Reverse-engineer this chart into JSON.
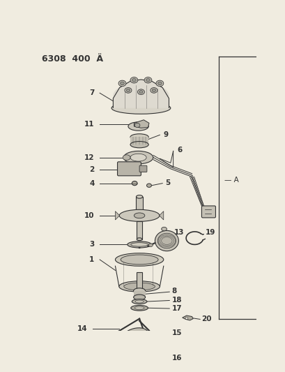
{
  "title": "6308 400 A",
  "bg": "#f0ece0",
  "lc": "#333333",
  "fig_width": 4.1,
  "fig_height": 5.33,
  "dpi": 100
}
